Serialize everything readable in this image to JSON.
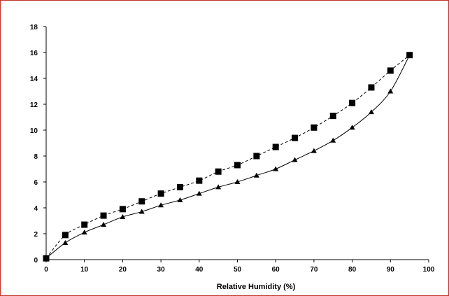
{
  "chart_data": {
    "type": "line",
    "title": "",
    "xlabel": "Relative Humidity (%)",
    "ylabel": "",
    "xlim": [
      0,
      100
    ],
    "ylim": [
      0,
      18
    ],
    "x_ticks": [
      0,
      10,
      20,
      30,
      40,
      50,
      60,
      70,
      80,
      90,
      100
    ],
    "y_ticks": [
      0,
      2,
      4,
      6,
      8,
      10,
      12,
      14,
      16,
      18
    ],
    "grid": false,
    "legend": "none",
    "series": [
      {
        "marker": "square",
        "line_style": "dashed",
        "color": "#000000",
        "x": [
          0,
          5,
          10,
          15,
          20,
          25,
          30,
          35,
          40,
          45,
          50,
          55,
          60,
          65,
          70,
          75,
          80,
          85,
          90,
          95
        ],
        "y": [
          0.1,
          1.9,
          2.7,
          3.4,
          3.9,
          4.5,
          5.1,
          5.6,
          6.1,
          6.8,
          7.3,
          8.0,
          8.7,
          9.4,
          10.2,
          11.1,
          12.1,
          13.3,
          14.6,
          15.8
        ]
      },
      {
        "marker": "triangle",
        "line_style": "solid",
        "color": "#000000",
        "x": [
          0,
          5,
          10,
          15,
          20,
          25,
          30,
          35,
          40,
          45,
          50,
          55,
          60,
          65,
          70,
          75,
          80,
          85,
          90,
          95
        ],
        "y": [
          0.1,
          1.3,
          2.1,
          2.7,
          3.3,
          3.7,
          4.2,
          4.6,
          5.1,
          5.6,
          6.0,
          6.5,
          7.0,
          7.7,
          8.4,
          9.2,
          10.2,
          11.4,
          13.0,
          15.8
        ]
      }
    ]
  }
}
